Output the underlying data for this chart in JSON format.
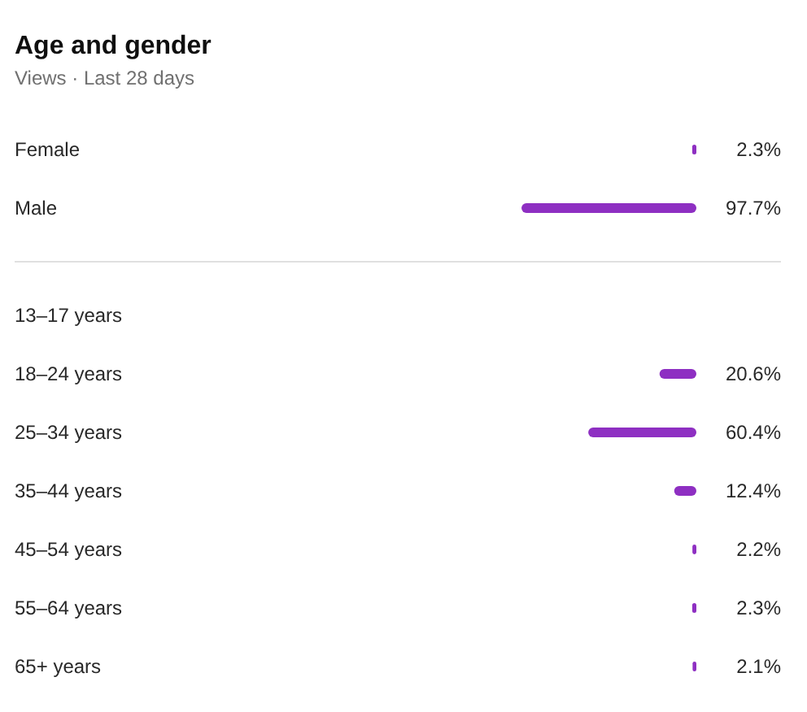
{
  "chart_data": [
    {
      "type": "bar",
      "title": "Age and gender",
      "subtitle": "Views · Last 28 days",
      "orientation": "horizontal",
      "categories": [
        "Female",
        "Male"
      ],
      "values": [
        2.3,
        97.7
      ],
      "value_labels": [
        "2.3%",
        "97.7%"
      ],
      "color": "#8e2fc2",
      "tick_labels": "y"
    },
    {
      "type": "bar",
      "orientation": "horizontal",
      "categories": [
        "13–17 years",
        "18–24 years",
        "25–34 years",
        "35–44 years",
        "45–54 years",
        "55–64 years",
        "65+ years"
      ],
      "values": [
        null,
        20.6,
        60.4,
        12.4,
        2.2,
        2.3,
        2.1
      ],
      "value_labels": [
        null,
        "20.6%",
        "60.4%",
        "12.4%",
        "2.2%",
        "2.3%",
        "2.1%"
      ],
      "color": "#8e2fc2",
      "tick_labels": "y"
    }
  ]
}
